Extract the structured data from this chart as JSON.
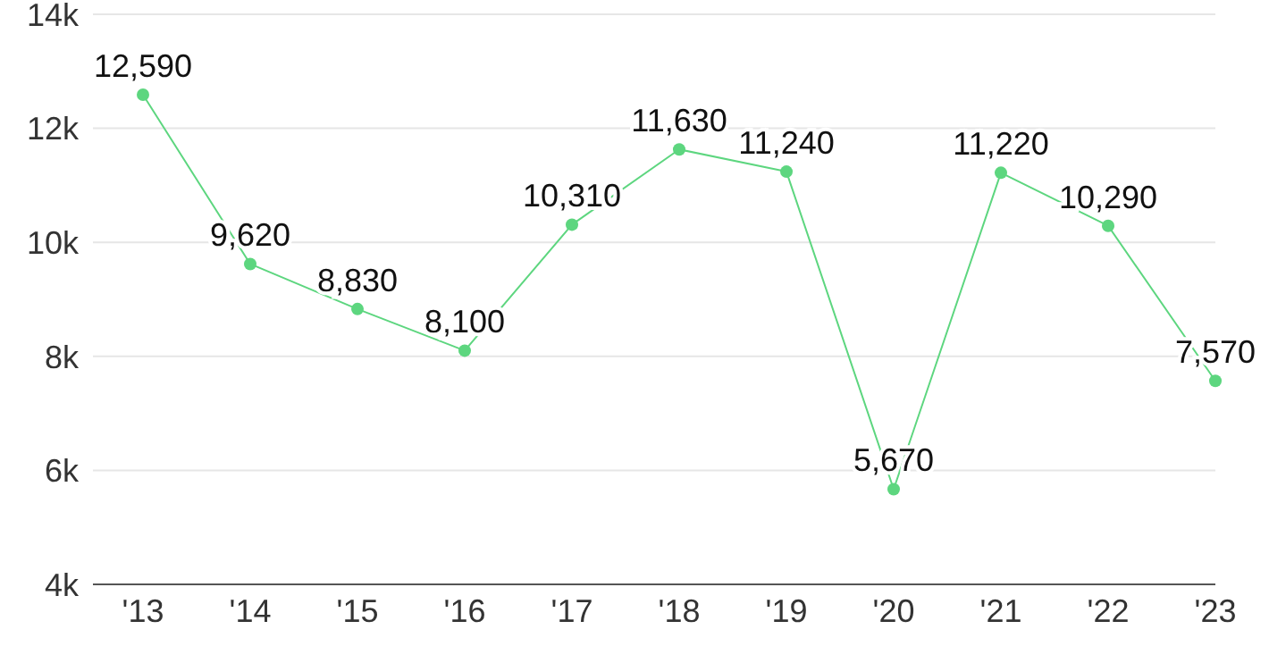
{
  "chart_data": {
    "type": "line",
    "categories": [
      "'13",
      "'14",
      "'15",
      "'16",
      "'17",
      "'18",
      "'19",
      "'20",
      "'21",
      "'22",
      "'23"
    ],
    "series": [
      {
        "color": "#5dd67f",
        "values": [
          12590,
          9620,
          8830,
          8100,
          10310,
          11630,
          11240,
          5670,
          11220,
          10290,
          7570
        ],
        "value_labels": [
          "12,590",
          "9,620",
          "8,830",
          "8,100",
          "10,310",
          "11,630",
          "11,240",
          "5,670",
          "11,220",
          "10,290",
          "7,570"
        ]
      }
    ],
    "ylim": [
      4000,
      14000
    ],
    "yticks": [
      {
        "value": 4000,
        "label": "4k"
      },
      {
        "value": 6000,
        "label": "6k"
      },
      {
        "value": 8000,
        "label": "8k"
      },
      {
        "value": 10000,
        "label": "10k"
      },
      {
        "value": 12000,
        "label": "12k"
      },
      {
        "value": 14000,
        "label": "14k"
      }
    ],
    "grid": "y",
    "marker": "circle"
  }
}
